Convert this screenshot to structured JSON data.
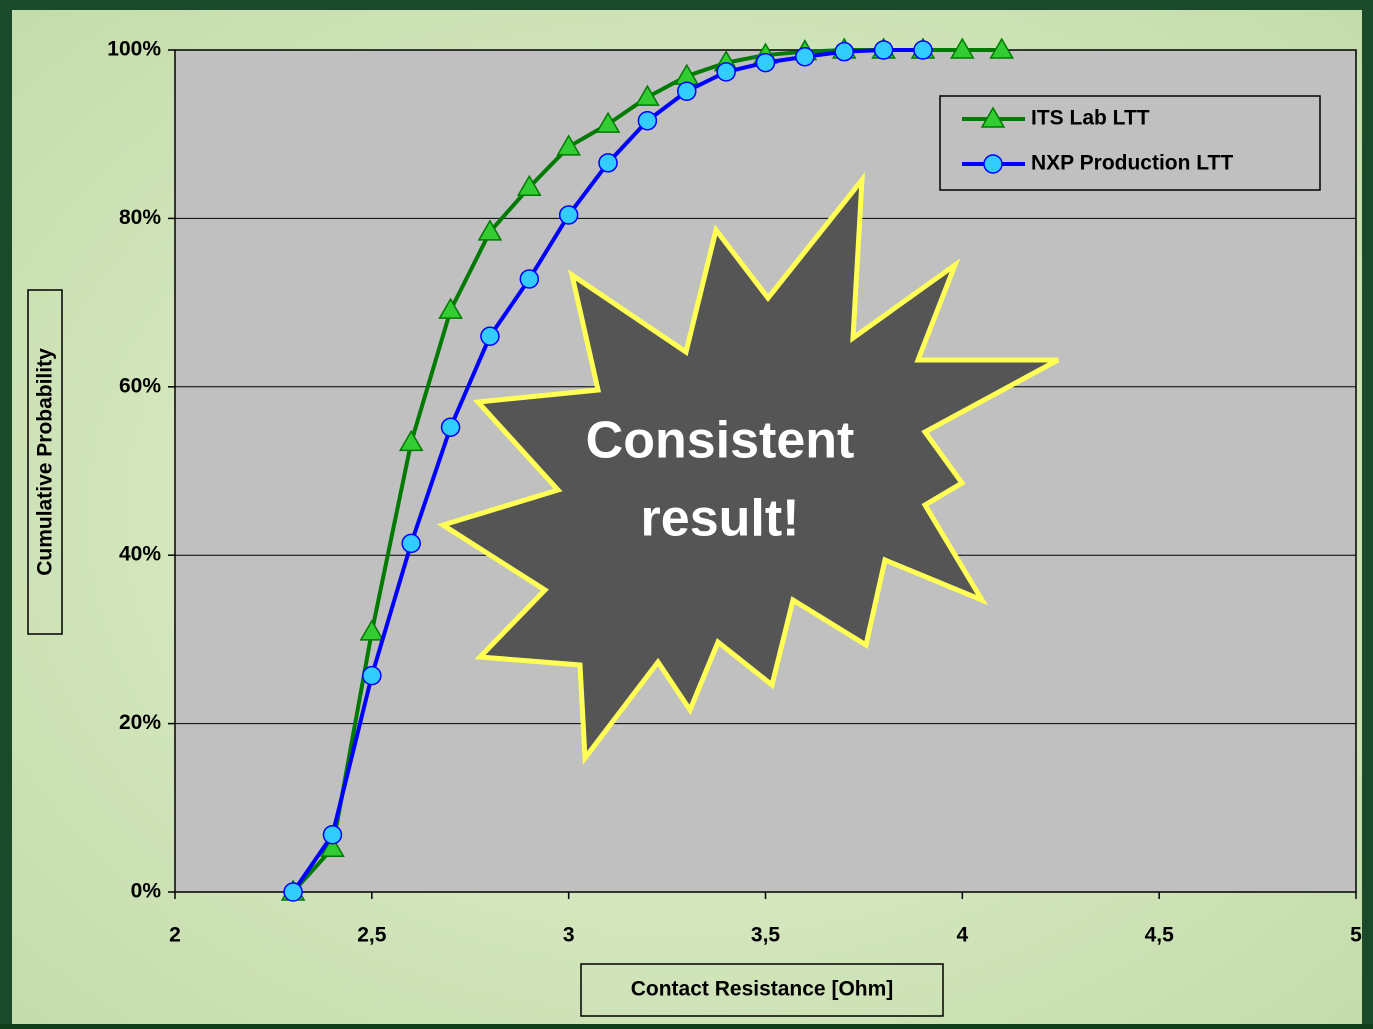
{
  "chart_data": {
    "type": "line",
    "xlabel": "Contact Resistance [Ohm]",
    "ylabel": "Cumulative Probability",
    "annotation": [
      "Consistent",
      "result!"
    ],
    "xlim": [
      2,
      5
    ],
    "xticks": [
      2,
      {
        "value": 2.5,
        "label": "2,5"
      },
      3,
      {
        "value": 3.5,
        "label": "3,5"
      },
      4,
      {
        "value": 4.5,
        "label": "4,5"
      },
      5
    ],
    "ylim": [
      0,
      100
    ],
    "yticks": [
      {
        "value": 0,
        "label": "0%"
      },
      {
        "value": 20,
        "label": "20%"
      },
      {
        "value": 40,
        "label": "40%"
      },
      {
        "value": 60,
        "label": "60%"
      },
      {
        "value": 80,
        "label": "80%"
      },
      {
        "value": 100,
        "label": "100%"
      }
    ],
    "grid": true,
    "legend": "upper right",
    "series": [
      {
        "name": "ITS Lab LTT",
        "color": "#007a00",
        "marker": "triangle",
        "marker_color": "#33cc33",
        "x": [
          2.3,
          2.4,
          2.5,
          2.6,
          2.7,
          2.8,
          2.9,
          3.0,
          3.1,
          3.2,
          3.3,
          3.4,
          3.5,
          3.6,
          3.7,
          3.8,
          3.9,
          4.0,
          4.1
        ],
        "values": [
          0,
          5.2,
          30.9,
          53.4,
          69.1,
          78.4,
          83.7,
          88.5,
          91.2,
          94.4,
          96.9,
          98.5,
          99.4,
          99.8,
          100,
          100,
          100,
          100,
          100
        ]
      },
      {
        "name": "NXP Production LTT",
        "color": "#0000ff",
        "marker": "circle",
        "marker_color": "#33ccff",
        "x": [
          2.3,
          2.4,
          2.5,
          2.6,
          2.7,
          2.8,
          2.9,
          3.0,
          3.1,
          3.2,
          3.3,
          3.4,
          3.5,
          3.6,
          3.7,
          3.8,
          3.9
        ],
        "values": [
          0,
          6.8,
          25.7,
          41.4,
          55.2,
          66.0,
          72.8,
          80.4,
          86.6,
          91.6,
          95.1,
          97.4,
          98.5,
          99.2,
          99.8,
          100,
          100
        ]
      }
    ]
  }
}
